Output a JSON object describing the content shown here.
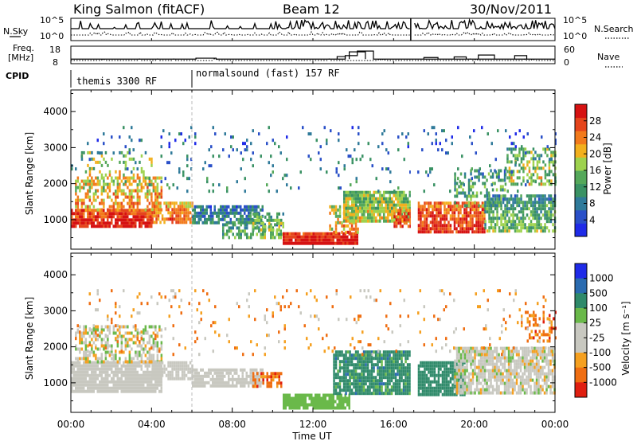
{
  "header": {
    "station": "King Salmon (fitACF)",
    "beam": "Beam 12",
    "date": "30/Nov/2011"
  },
  "strip_labels": {
    "nsky": "N.Sky",
    "nsearch": "N.Search",
    "freq_line1": "Freq.",
    "freq_line2": "[MHz]",
    "nave": "Nave",
    "cpid": "CPID"
  },
  "chart_data": [
    {
      "type": "line",
      "name": "noise-panel",
      "y_left_ticks": [
        "10^5",
        "10^0"
      ],
      "y_right_ticks": [
        "10^5",
        "10^0"
      ],
      "series": [
        {
          "name": "N.Sky",
          "style": "solid"
        },
        {
          "name": "N.Search",
          "style": "dotted"
        }
      ]
    },
    {
      "type": "line",
      "name": "frequency-nave-panel",
      "y_left_ticks": [
        "18",
        "8"
      ],
      "y_right_ticks": [
        "60",
        "0"
      ],
      "x": [
        0,
        4,
        6,
        6.2,
        7,
        7.2,
        8.5,
        10,
        12,
        13.2,
        13.6,
        14.2,
        15,
        16.8,
        17,
        17.5,
        18,
        19,
        20,
        21,
        22,
        23,
        24
      ],
      "freq_mhz": [
        10.4,
        10.4,
        10.4,
        11,
        11,
        10.4,
        10.4,
        10.4,
        10.4,
        10.4,
        12.6,
        15.5,
        10.4,
        10.4,
        10.4,
        10.4,
        10.4,
        10.4,
        10.4,
        10.4,
        10.4,
        10.4,
        10.4
      ],
      "nave": [
        28,
        28,
        28,
        35,
        35,
        28,
        28,
        28,
        28,
        28,
        28,
        28,
        28,
        28,
        28,
        28,
        28,
        28,
        28,
        28,
        28,
        28,
        28
      ]
    },
    {
      "type": "table",
      "name": "cpid-bar",
      "segments": [
        {
          "start_hour": 0,
          "label": "themis 3300 RF"
        },
        {
          "start_hour": 6,
          "label": "normalsound (fast) 157 RF"
        }
      ]
    },
    {
      "type": "heatmap",
      "name": "power-panel",
      "ylabel": "Slant Range [km]",
      "ylim": [
        180,
        4600
      ],
      "y_ticks": [
        1000,
        2000,
        3000,
        4000
      ],
      "colorbar": {
        "label": "Power [dB]",
        "range": [
          0,
          32
        ],
        "ticks": [
          "28",
          "24",
          "20",
          "16",
          "12",
          "8",
          "4"
        ],
        "tick_values": [
          28,
          24,
          20,
          16,
          12,
          8,
          4
        ],
        "colors": [
          "#1f2be8",
          "#2a50c8",
          "#2f7a9a",
          "#3a9264",
          "#55a85a",
          "#9ed24e",
          "#f2b01e",
          "#f27a1c",
          "#e5451c",
          "#d61212"
        ]
      },
      "blobs": [
        {
          "t": [
            0.0,
            4.0
          ],
          "r": [
            800,
            1300
          ],
          "level": 8.5,
          "spread": 1.2,
          "density": 0.9
        },
        {
          "t": [
            0.2,
            4.5
          ],
          "r": [
            1300,
            2200
          ],
          "level": 6.2,
          "spread": 1.8,
          "density": 0.55
        },
        {
          "t": [
            0.5,
            4.0
          ],
          "r": [
            2200,
            2900
          ],
          "level": 4.5,
          "spread": 2.0,
          "density": 0.25
        },
        {
          "t": [
            4.0,
            6.0
          ],
          "r": [
            900,
            1500
          ],
          "level": 6.8,
          "spread": 1.5,
          "density": 0.8
        },
        {
          "t": [
            6.0,
            9.5
          ],
          "r": [
            900,
            1400
          ],
          "level": 2.3,
          "spread": 1.4,
          "density": 0.75
        },
        {
          "t": [
            7.5,
            10.5
          ],
          "r": [
            500,
            900
          ],
          "level": 3.5,
          "spread": 1.6,
          "density": 0.55
        },
        {
          "t": [
            9.0,
            10.5
          ],
          "r": [
            700,
            1200
          ],
          "level": 4.3,
          "spread": 1.6,
          "density": 0.6
        },
        {
          "t": [
            10.5,
            14.2
          ],
          "r": [
            300,
            650
          ],
          "level": 9.0,
          "spread": 1.0,
          "density": 0.95
        },
        {
          "t": [
            12.8,
            14.2
          ],
          "r": [
            650,
            1400
          ],
          "level": 6.0,
          "spread": 2.0,
          "density": 0.6
        },
        {
          "t": [
            13.5,
            16.8
          ],
          "r": [
            1000,
            1800
          ],
          "level": 4.8,
          "spread": 1.6,
          "density": 0.9
        },
        {
          "t": [
            16.0,
            16.8
          ],
          "r": [
            800,
            1300
          ],
          "level": 8.0,
          "spread": 1.6,
          "density": 0.8
        },
        {
          "t": [
            17.2,
            20.5
          ],
          "r": [
            700,
            1500
          ],
          "level": 8.0,
          "spread": 1.6,
          "density": 0.85
        },
        {
          "t": [
            19.0,
            21.5
          ],
          "r": [
            1400,
            2400
          ],
          "level": 3.5,
          "spread": 1.8,
          "density": 0.4
        },
        {
          "t": [
            20.5,
            24.0
          ],
          "r": [
            700,
            1700
          ],
          "level": 3.5,
          "spread": 1.6,
          "density": 0.7
        },
        {
          "t": [
            21.5,
            24.0
          ],
          "r": [
            2000,
            3000
          ],
          "level": 4.5,
          "spread": 2.0,
          "density": 0.45
        },
        {
          "t": [
            0.0,
            24.0
          ],
          "r": [
            1800,
            3600
          ],
          "level": 2.0,
          "spread": 1.5,
          "density": 0.05
        }
      ]
    },
    {
      "type": "heatmap",
      "name": "velocity-panel",
      "ylabel": "Slant Range [km]",
      "xlabel": "Time UT",
      "ylim": [
        180,
        4600
      ],
      "y_ticks": [
        1000,
        2000,
        3000,
        4000
      ],
      "x_ticks": [
        "00:00",
        "04:00",
        "08:00",
        "12:00",
        "16:00",
        "20:00",
        "00:00"
      ],
      "x_tick_hours": [
        0,
        4,
        8,
        12,
        16,
        20,
        24
      ],
      "colorbar": {
        "label": "Velocity [m s⁻¹]",
        "ticks": [
          "1000",
          "500",
          "100",
          "25",
          "-25",
          "-100",
          "-500",
          "-1000"
        ],
        "colors": [
          "#1f2be8",
          "#2a6bb0",
          "#2f8a6a",
          "#6ab94a",
          "#c8c8c0",
          "#f5a020",
          "#ef6e12",
          "#e01f10"
        ]
      },
      "blobs": [
        {
          "t": [
            0.0,
            4.5
          ],
          "r": [
            800,
            1600
          ],
          "level": 4,
          "spread": 0.3,
          "density": 0.9
        },
        {
          "t": [
            0.2,
            4.5
          ],
          "r": [
            1600,
            2600
          ],
          "level": 4,
          "spread": 0.9,
          "density": 0.5
        },
        {
          "t": [
            4.0,
            6.0
          ],
          "r": [
            1100,
            1600
          ],
          "level": 4,
          "spread": 0.4,
          "density": 0.8
        },
        {
          "t": [
            6.0,
            9.5
          ],
          "r": [
            900,
            1400
          ],
          "level": 4,
          "spread": 0.5,
          "density": 0.75
        },
        {
          "t": [
            9.0,
            10.4
          ],
          "r": [
            900,
            1300
          ],
          "level": 6,
          "spread": 0.8,
          "density": 0.6
        },
        {
          "t": [
            10.5,
            13.8
          ],
          "r": [
            300,
            700
          ],
          "level": 3,
          "spread": 0.5,
          "density": 0.9
        },
        {
          "t": [
            13.0,
            16.8
          ],
          "r": [
            700,
            1900
          ],
          "level": 2,
          "spread": 0.6,
          "density": 0.85
        },
        {
          "t": [
            17.2,
            19.5
          ],
          "r": [
            700,
            1600
          ],
          "level": 2,
          "spread": 0.5,
          "density": 0.85
        },
        {
          "t": [
            19.0,
            24.0
          ],
          "r": [
            700,
            2000
          ],
          "level": 4,
          "spread": 0.7,
          "density": 0.8
        },
        {
          "t": [
            22.5,
            24.0
          ],
          "r": [
            2200,
            3000
          ],
          "level": 6,
          "spread": 1.0,
          "density": 0.4
        },
        {
          "t": [
            0.0,
            24.0
          ],
          "r": [
            1800,
            3600
          ],
          "level": 5,
          "spread": 1.5,
          "density": 0.05
        }
      ]
    }
  ]
}
